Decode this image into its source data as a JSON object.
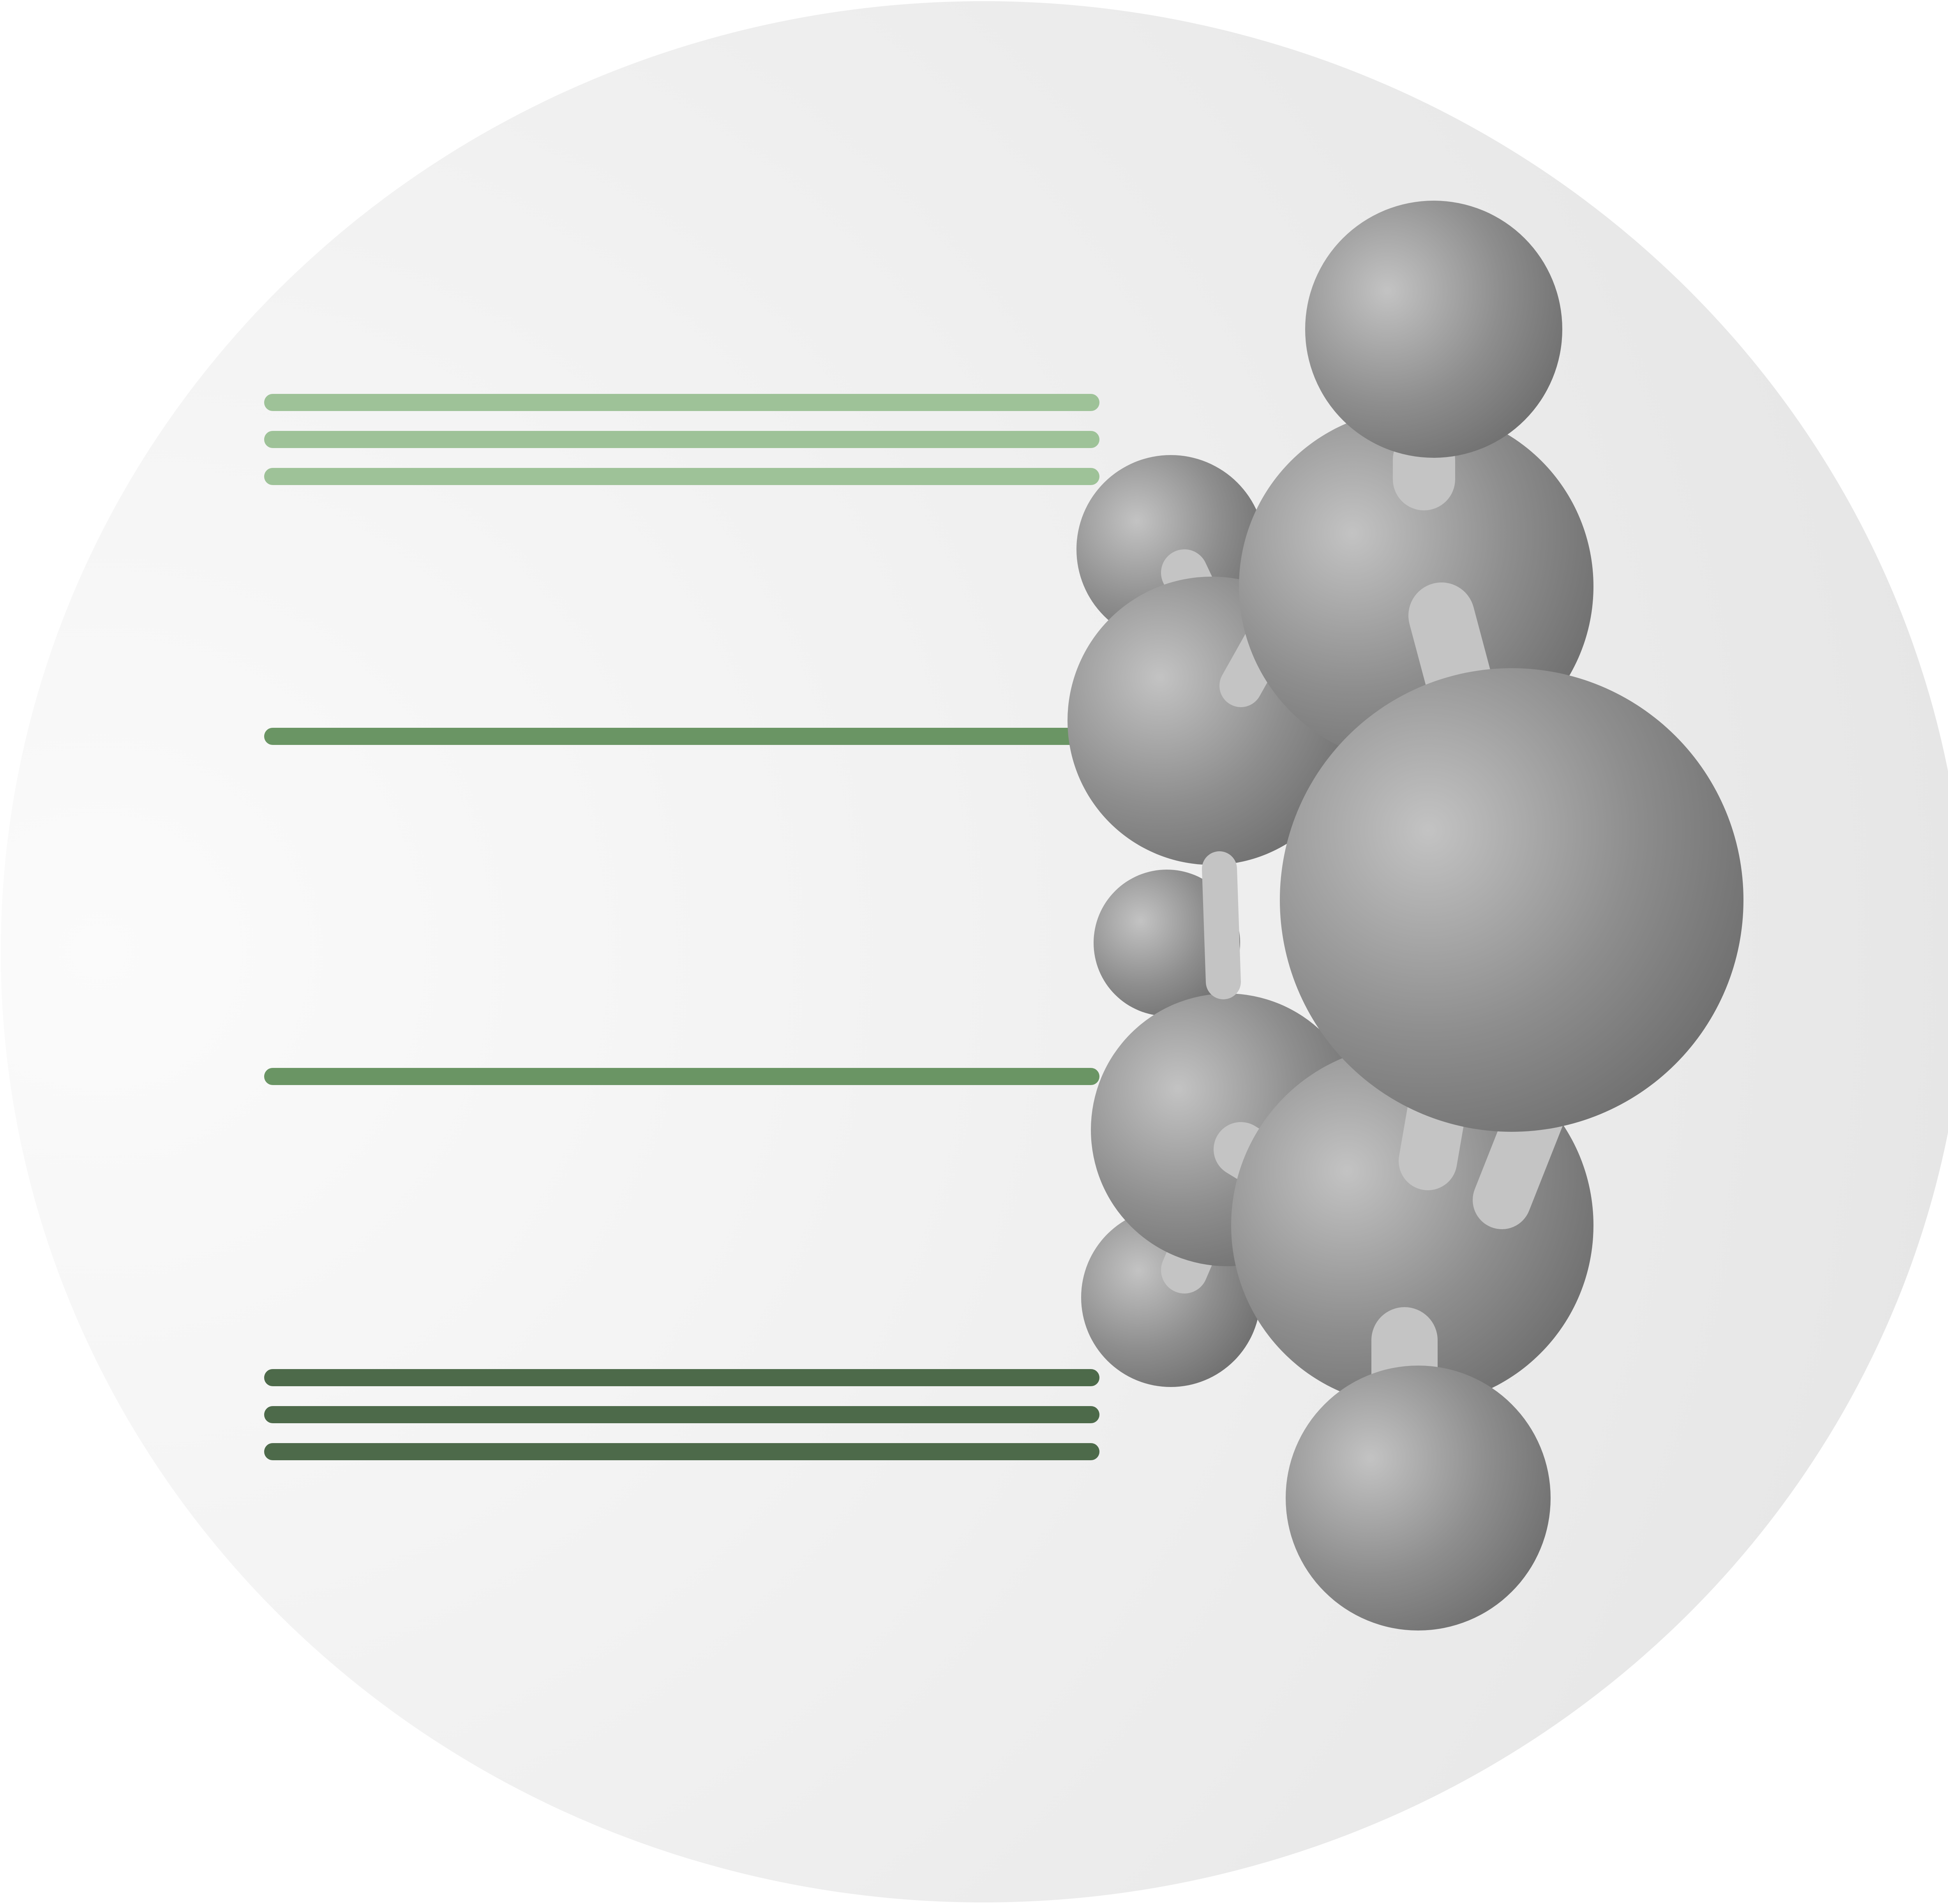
{
  "figure": {
    "subject": "molecular-orbital-energy-diagram",
    "background_icon": "disc-background"
  },
  "energy_levels": [
    {
      "name": "level-top",
      "line_count": 3,
      "color": "#9ec298"
    },
    {
      "name": "level-upper-middle",
      "line_count": 1,
      "color": "#6a9564"
    },
    {
      "name": "level-lower-middle",
      "line_count": 1,
      "color": "#6a9564"
    },
    {
      "name": "level-bottom",
      "line_count": 3,
      "color": "#4d6a4a"
    }
  ],
  "molecule": {
    "icon": "ball-and-stick-molecule-icon",
    "atom_color": "#8e8e8e",
    "bond_color": "#c4c4c4",
    "atom_count": 11
  }
}
